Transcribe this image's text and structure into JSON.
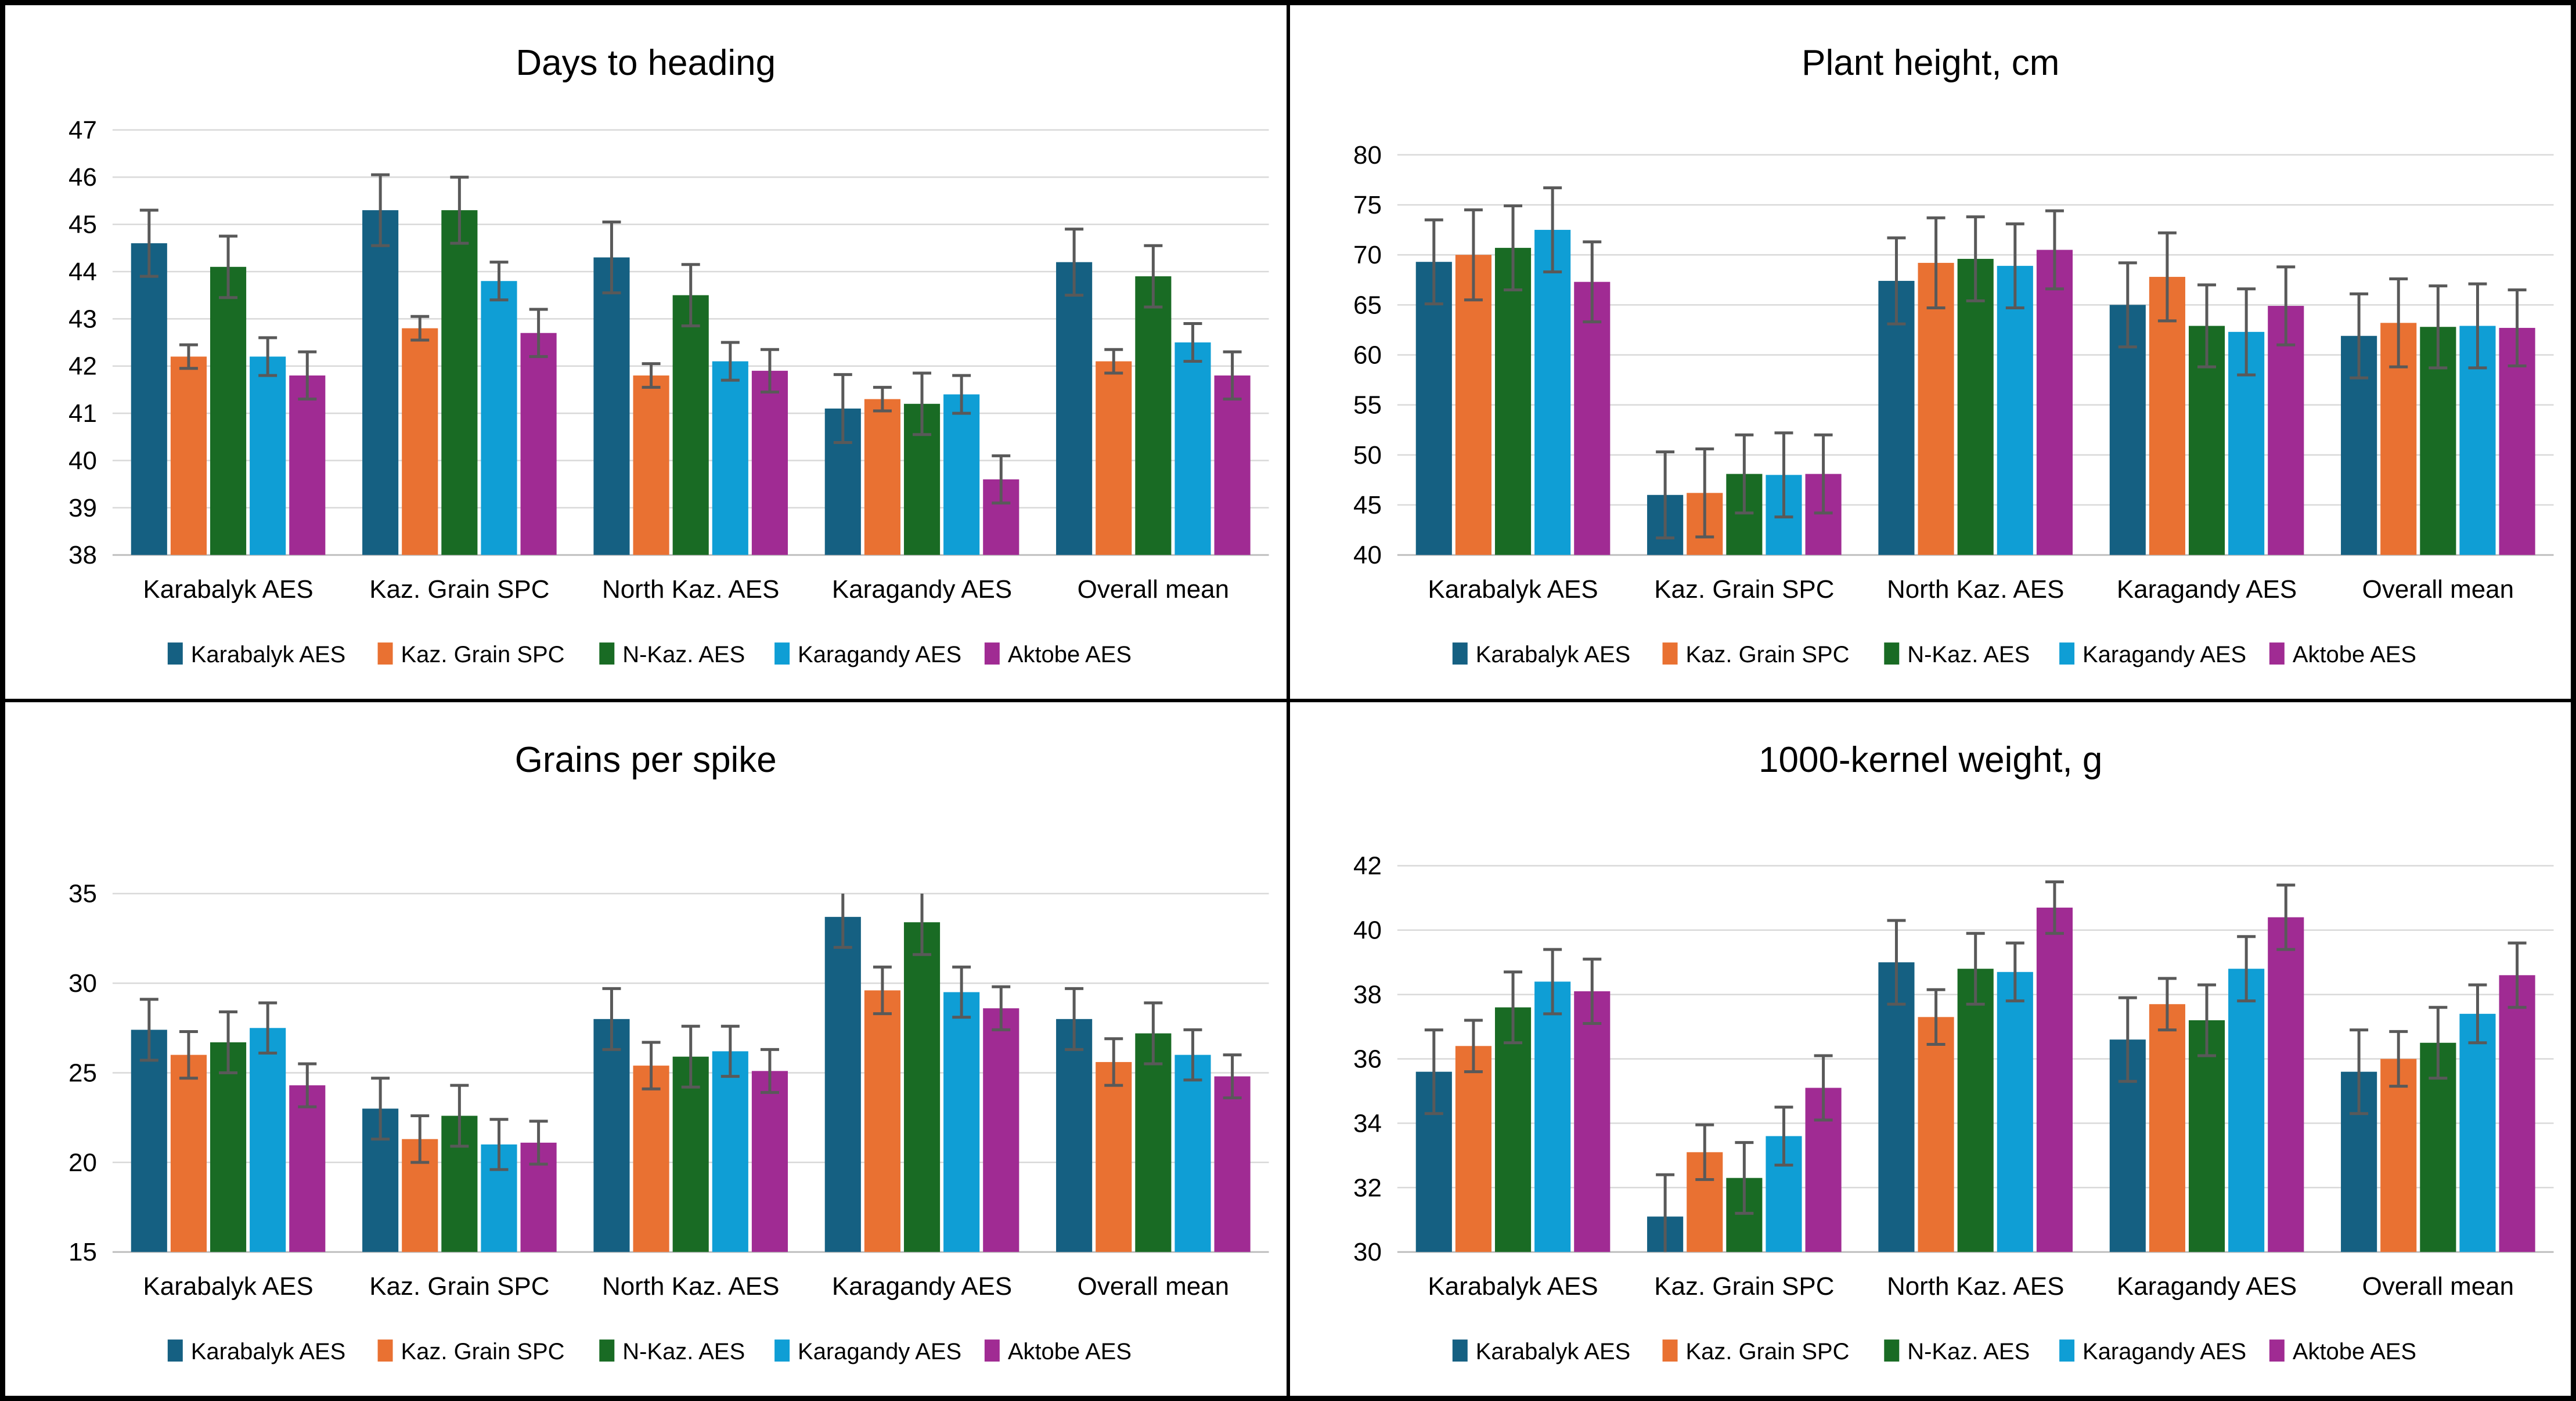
{
  "figure": {
    "background": "#FFFFFF",
    "border_color": "#000000",
    "style_colors": {
      "gridline": "#D9D9D9",
      "axis_line": "#BFBFBF",
      "error_bar": "#595959",
      "text": "#000000"
    }
  },
  "chart_data": [
    {
      "id": "days-to-heading",
      "type": "bar",
      "title": "Days to heading",
      "ylim": [
        38,
        47
      ],
      "ytick_step": 1,
      "grid": true,
      "legend_position": "bottom",
      "categories": [
        "Karabalyk AES",
        "Kaz. Grain SPC",
        "North Kaz. AES",
        "Karagandy AES",
        "Overall mean"
      ],
      "series": [
        {
          "name": "Karabalyk AES",
          "color": "#156082",
          "values": [
            44.6,
            45.3,
            44.3,
            41.1,
            44.2
          ],
          "errors": [
            0.7,
            0.75,
            0.75,
            0.72,
            0.7
          ]
        },
        {
          "name": "Kaz. Grain SPC",
          "color": "#E97132",
          "values": [
            42.2,
            42.8,
            41.8,
            41.3,
            42.1
          ],
          "errors": [
            0.25,
            0.25,
            0.25,
            0.25,
            0.25
          ]
        },
        {
          "name": "N-Kaz. AES",
          "color": "#196B24",
          "values": [
            44.1,
            45.3,
            43.5,
            41.2,
            43.9
          ],
          "errors": [
            0.65,
            0.7,
            0.65,
            0.65,
            0.65
          ]
        },
        {
          "name": "Karagandy AES",
          "color": "#0F9ED5",
          "values": [
            42.2,
            43.8,
            42.1,
            41.4,
            42.5
          ],
          "errors": [
            0.4,
            0.4,
            0.4,
            0.4,
            0.4
          ]
        },
        {
          "name": "Aktobe AES",
          "color": "#A02B93",
          "values": [
            41.8,
            42.7,
            41.9,
            39.6,
            41.8
          ],
          "errors": [
            0.5,
            0.5,
            0.45,
            0.5,
            0.5
          ]
        }
      ]
    },
    {
      "id": "plant-height",
      "type": "bar",
      "title": "Plant height, cm",
      "ylim": [
        40,
        80
      ],
      "ytick_step": 5,
      "grid": true,
      "legend_position": "bottom",
      "categories": [
        "Karabalyk AES",
        "Kaz. Grain SPC",
        "North Kaz. AES",
        "Karagandy AES",
        "Overall mean"
      ],
      "series": [
        {
          "name": "Karabalyk AES",
          "color": "#156082",
          "values": [
            69.3,
            46.0,
            67.4,
            65.0,
            61.9
          ],
          "errors": [
            4.2,
            4.3,
            4.3,
            4.2,
            4.2
          ]
        },
        {
          "name": "Kaz. Grain SPC",
          "color": "#E97132",
          "values": [
            70.0,
            46.2,
            69.2,
            67.8,
            63.2
          ],
          "errors": [
            4.5,
            4.4,
            4.5,
            4.4,
            4.4
          ]
        },
        {
          "name": "N-Kaz. AES",
          "color": "#196B24",
          "values": [
            70.7,
            48.1,
            69.6,
            62.9,
            62.8
          ],
          "errors": [
            4.2,
            3.9,
            4.2,
            4.1,
            4.1
          ]
        },
        {
          "name": "Karagandy AES",
          "color": "#0F9ED5",
          "values": [
            72.5,
            48.0,
            68.9,
            62.3,
            62.9
          ],
          "errors": [
            4.2,
            4.2,
            4.2,
            4.3,
            4.2
          ]
        },
        {
          "name": "Aktobe AES",
          "color": "#A02B93",
          "values": [
            67.3,
            48.1,
            70.5,
            64.9,
            62.7
          ],
          "errors": [
            4.0,
            3.9,
            3.9,
            3.9,
            3.8
          ]
        }
      ]
    },
    {
      "id": "grains-per-spike",
      "type": "bar",
      "title": "Grains per spike",
      "ylim": [
        15,
        35
      ],
      "ytick_step": 5,
      "grid": true,
      "legend_position": "bottom",
      "categories": [
        "Karabalyk AES",
        "Kaz. Grain SPC",
        "North Kaz. AES",
        "Karagandy AES",
        "Overall mean"
      ],
      "series": [
        {
          "name": "Karabalyk AES",
          "color": "#156082",
          "values": [
            27.4,
            23.0,
            28.0,
            33.7,
            28.0
          ],
          "errors": [
            1.7,
            1.7,
            1.7,
            1.7,
            1.7
          ]
        },
        {
          "name": "Kaz. Grain SPC",
          "color": "#E97132",
          "values": [
            26.0,
            21.3,
            25.4,
            29.6,
            25.6
          ],
          "errors": [
            1.3,
            1.3,
            1.3,
            1.3,
            1.3
          ]
        },
        {
          "name": "N-Kaz. AES",
          "color": "#196B24",
          "values": [
            26.7,
            22.6,
            25.9,
            33.4,
            27.2
          ],
          "errors": [
            1.7,
            1.7,
            1.7,
            1.8,
            1.7
          ]
        },
        {
          "name": "Karagandy AES",
          "color": "#0F9ED5",
          "values": [
            27.5,
            21.0,
            26.2,
            29.5,
            26.0
          ],
          "errors": [
            1.4,
            1.4,
            1.4,
            1.4,
            1.4
          ]
        },
        {
          "name": "Aktobe AES",
          "color": "#A02B93",
          "values": [
            24.3,
            21.1,
            25.1,
            28.6,
            24.8
          ],
          "errors": [
            1.2,
            1.2,
            1.2,
            1.2,
            1.2
          ]
        }
      ]
    },
    {
      "id": "thousand-kernel-weight",
      "type": "bar",
      "title": "1000-kernel weight, g",
      "ylim": [
        30,
        42
      ],
      "ytick_step": 2,
      "grid": true,
      "legend_position": "bottom",
      "categories": [
        "Karabalyk AES",
        "Kaz. Grain SPC",
        "North Kaz. AES",
        "Karagandy AES",
        "Overall mean"
      ],
      "series": [
        {
          "name": "Karabalyk AES",
          "color": "#156082",
          "values": [
            35.6,
            31.1,
            39.0,
            36.6,
            35.6
          ],
          "errors": [
            1.3,
            1.3,
            1.3,
            1.3,
            1.3
          ]
        },
        {
          "name": "Kaz. Grain SPC",
          "color": "#E97132",
          "values": [
            36.4,
            33.1,
            37.3,
            37.7,
            36.0
          ],
          "errors": [
            0.8,
            0.85,
            0.85,
            0.8,
            0.85
          ]
        },
        {
          "name": "N-Kaz. AES",
          "color": "#196B24",
          "values": [
            37.6,
            32.3,
            38.8,
            37.2,
            36.5
          ],
          "errors": [
            1.1,
            1.1,
            1.1,
            1.1,
            1.1
          ]
        },
        {
          "name": "Karagandy AES",
          "color": "#0F9ED5",
          "values": [
            38.4,
            33.6,
            38.7,
            38.8,
            37.4
          ],
          "errors": [
            1.0,
            0.9,
            0.9,
            1.0,
            0.9
          ]
        },
        {
          "name": "Aktobe AES",
          "color": "#A02B93",
          "values": [
            38.1,
            35.1,
            40.7,
            40.4,
            38.6
          ],
          "errors": [
            1.0,
            1.0,
            0.8,
            1.0,
            1.0
          ]
        }
      ]
    }
  ]
}
